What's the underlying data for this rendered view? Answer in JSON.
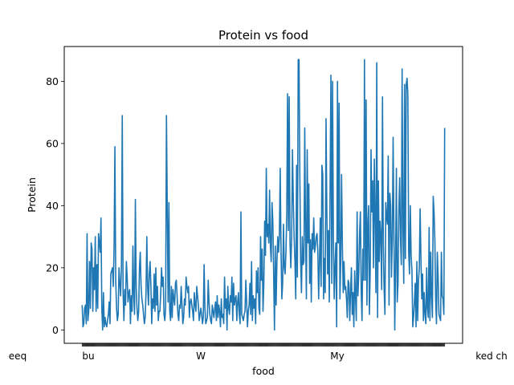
{
  "chart_data": {
    "type": "line",
    "title": "Protein vs food",
    "xlabel": "food",
    "ylabel": "Protein",
    "ylim": [
      -4.3,
      91.2
    ],
    "yticks": [
      0,
      20,
      40,
      60,
      80
    ],
    "grid": false,
    "line_color": "#1f77b4",
    "x_tick_labels_visible": [
      "eeq",
      "bu",
      "W",
      "My",
      "ked ch"
    ],
    "series": [
      {
        "values": [
          8,
          1,
          2,
          7,
          8,
          2,
          31,
          3,
          6,
          22,
          7,
          28,
          26,
          6,
          20,
          13,
          30,
          6,
          21,
          7,
          31,
          28,
          25,
          36,
          7,
          0,
          12,
          1,
          4,
          2,
          1,
          3,
          5,
          9,
          2,
          18,
          19,
          20,
          14,
          27,
          59,
          16,
          7,
          3,
          5,
          20,
          15,
          11,
          21,
          69,
          12,
          3,
          13,
          8,
          22,
          17,
          9,
          12,
          13,
          2,
          11,
          6,
          27,
          11,
          5,
          42,
          14,
          7,
          3,
          6,
          20,
          25,
          14,
          10,
          8,
          5,
          2,
          4,
          12,
          30,
          14,
          8,
          18,
          22,
          14,
          2,
          10,
          7,
          18,
          6,
          20,
          8,
          14,
          3,
          6,
          6,
          12,
          20,
          14,
          17,
          5,
          3,
          7,
          69,
          39,
          9,
          41,
          6,
          3,
          14,
          4,
          13,
          10,
          8,
          15,
          16,
          11,
          5,
          3,
          8,
          7,
          14,
          8,
          2,
          4,
          10,
          8,
          17,
          14,
          12,
          14,
          4,
          9,
          10,
          8,
          6,
          3,
          12,
          8,
          6,
          14,
          11,
          8,
          3,
          5,
          7,
          5,
          2,
          4,
          21,
          7,
          2,
          3,
          4,
          16,
          9,
          5,
          3,
          2,
          8,
          6,
          4,
          7,
          9,
          3,
          11,
          4,
          8,
          6,
          1,
          10,
          4,
          5,
          2,
          17,
          7,
          10,
          0,
          14,
          7,
          5,
          11,
          9,
          17,
          3,
          15,
          8,
          10,
          11,
          3,
          9,
          12,
          5,
          2,
          38,
          5,
          4,
          3,
          5,
          6,
          16,
          9,
          1,
          6,
          8,
          15,
          5,
          22,
          3,
          11,
          7,
          10,
          2,
          19,
          12,
          20,
          7,
          5,
          30,
          16,
          26,
          6,
          15,
          35,
          24,
          52,
          30,
          34,
          28,
          45,
          27,
          22,
          41,
          35,
          18,
          0,
          27,
          8,
          22,
          30,
          25,
          30,
          52,
          26,
          10,
          15,
          34,
          20,
          18,
          25,
          37,
          76,
          32,
          75,
          28,
          20,
          30,
          58,
          42,
          30,
          22,
          10,
          53,
          17,
          87,
          87,
          50,
          22,
          12,
          30,
          21,
          22,
          65,
          32,
          10,
          58,
          28,
          47,
          15,
          29,
          9,
          31,
          26,
          36,
          25,
          27,
          30,
          31,
          25,
          10,
          22,
          36,
          14,
          53,
          50,
          10,
          23,
          12,
          68,
          38,
          18,
          32,
          9,
          47,
          82,
          15,
          80,
          30,
          10,
          20,
          28,
          1,
          80,
          28,
          73,
          10,
          22,
          50,
          27,
          12,
          22,
          13,
          14,
          10,
          4,
          16,
          15,
          3,
          12,
          20,
          5,
          12,
          1,
          19,
          11,
          3,
          38,
          11,
          18,
          31,
          38,
          12,
          3,
          26,
          16,
          87,
          16,
          74,
          8,
          33,
          40,
          5,
          19,
          58,
          38,
          48,
          20,
          55,
          36,
          12,
          86,
          4,
          48,
          22,
          35,
          30,
          13,
          75,
          28,
          13,
          5,
          41,
          36,
          34,
          56,
          8,
          44,
          40,
          17,
          29,
          62,
          31,
          0,
          21,
          52,
          9,
          15,
          39,
          49,
          29,
          21,
          84,
          33,
          15,
          79,
          23,
          79,
          81,
          76,
          25,
          18,
          40,
          24,
          19,
          1,
          4,
          9,
          15,
          1,
          22,
          3,
          16,
          20,
          39,
          23,
          10,
          18,
          3,
          12,
          5,
          2,
          20,
          7,
          4,
          33,
          3,
          25,
          11,
          4,
          43,
          38,
          29,
          10,
          2,
          25,
          17,
          5,
          4,
          3,
          25,
          11,
          10,
          5,
          65
        ]
      }
    ]
  }
}
